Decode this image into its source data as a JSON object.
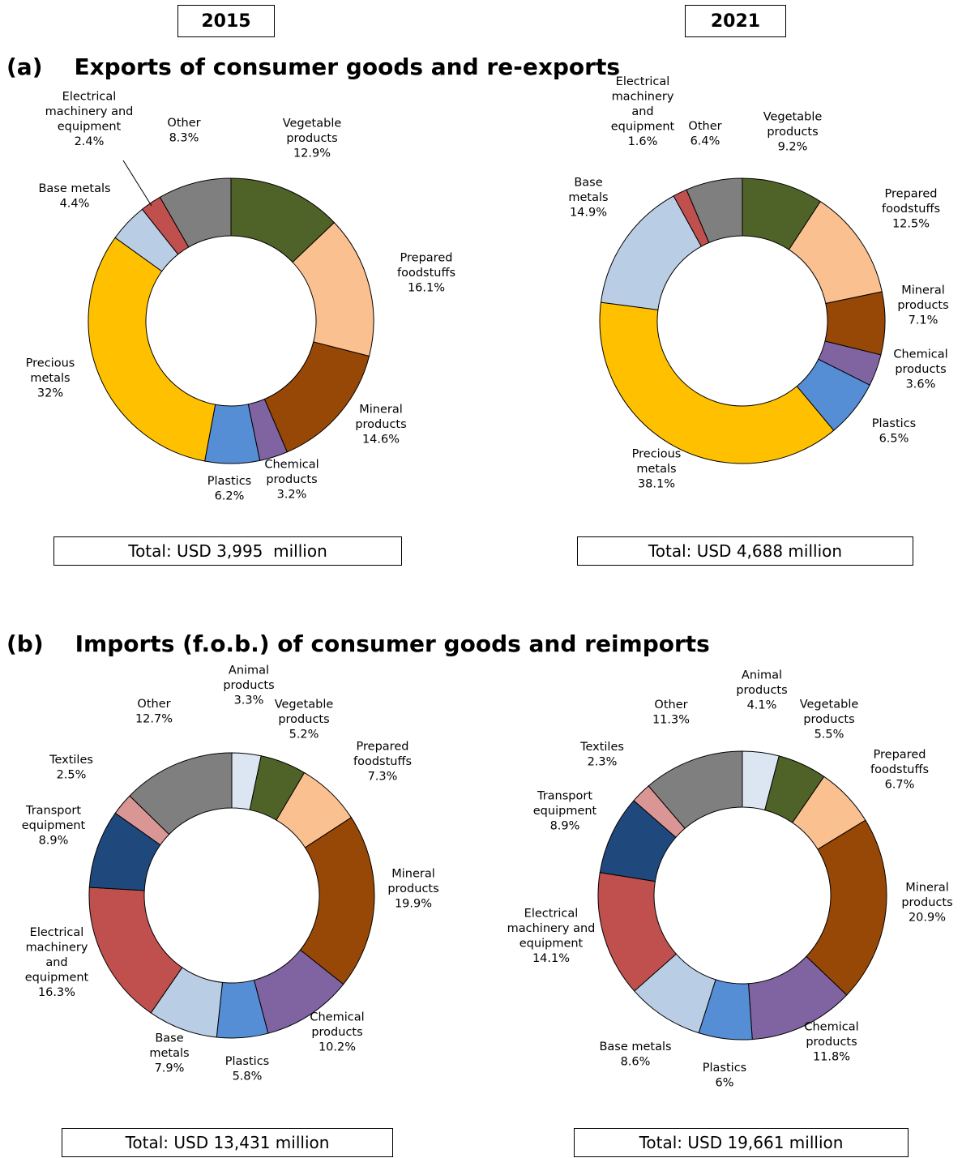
{
  "header": {
    "year_left": "2015",
    "year_right": "2021"
  },
  "sections": {
    "a_title": "(a)    Exports of consumer goods and re-exports",
    "b_title": "(b)    Imports (f.o.b.) of consumer goods and reimports"
  },
  "colors": {
    "vegetable_products": "#4f6228",
    "prepared_foodstuffs": "#fac090",
    "mineral_products": "#974706",
    "chemical_products": "#8064a2",
    "plastics": "#558ed5",
    "precious_metals": "#ffc000",
    "base_metals": "#b9cde5",
    "electrical_machinery": "#c0504d",
    "other": "#7f7f7f",
    "animal_products": "#dce6f2",
    "textiles": "#d99694",
    "transport_equipment": "#1f497d"
  },
  "chart_data": [
    {
      "type": "pie",
      "id": "exports-2015",
      "panel": "(a)",
      "year": "2015",
      "total": "Total: USD 3,995  million",
      "slices": [
        {
          "name": "Vegetable products",
          "value": 12.9,
          "label_lines": [
            "Vegetable",
            "products",
            "12.9%"
          ],
          "color": "#4f6228"
        },
        {
          "name": "Prepared foodstuffs",
          "value": 16.1,
          "label_lines": [
            "Prepared",
            "foodstuffs",
            "16.1%"
          ],
          "color": "#fac090"
        },
        {
          "name": "Mineral products",
          "value": 14.6,
          "label_lines": [
            "Mineral",
            "products",
            "14.6%"
          ],
          "color": "#974706"
        },
        {
          "name": "Chemical products",
          "value": 3.2,
          "label_lines": [
            "Chemical",
            "products",
            "3.2%"
          ],
          "color": "#8064a2"
        },
        {
          "name": "Plastics",
          "value": 6.2,
          "label_lines": [
            "Plastics",
            "6.2%"
          ],
          "color": "#558ed5"
        },
        {
          "name": "Precious metals",
          "value": 32,
          "label_lines": [
            "Precious",
            "metals",
            "32%"
          ],
          "color": "#ffc000"
        },
        {
          "name": "Base metals",
          "value": 4.4,
          "label_lines": [
            "Base metals",
            "4.4%"
          ],
          "color": "#b9cde5"
        },
        {
          "name": "Electrical machinery and equipment",
          "value": 2.4,
          "label_lines": [
            "Electrical",
            "machinery and",
            "equipment",
            "2.4%"
          ],
          "color": "#c0504d"
        },
        {
          "name": "Other",
          "value": 8.3,
          "label_lines": [
            "Other",
            "8.3%"
          ],
          "color": "#7f7f7f"
        }
      ]
    },
    {
      "type": "pie",
      "id": "exports-2021",
      "panel": "(a)",
      "year": "2021",
      "total": "Total: USD 4,688 million",
      "slices": [
        {
          "name": "Vegetable products",
          "value": 9.2,
          "label_lines": [
            "Vegetable",
            "products",
            "9.2%"
          ],
          "color": "#4f6228"
        },
        {
          "name": "Prepared foodstuffs",
          "value": 12.5,
          "label_lines": [
            "Prepared",
            "foodstuffs",
            "12.5%"
          ],
          "color": "#fac090"
        },
        {
          "name": "Mineral products",
          "value": 7.1,
          "label_lines": [
            "Mineral",
            "products",
            "7.1%"
          ],
          "color": "#974706"
        },
        {
          "name": "Chemical products",
          "value": 3.6,
          "label_lines": [
            "Chemical",
            "products",
            "3.6%"
          ],
          "color": "#8064a2"
        },
        {
          "name": "Plastics",
          "value": 6.5,
          "label_lines": [
            "Plastics",
            "6.5%"
          ],
          "color": "#558ed5"
        },
        {
          "name": "Precious metals",
          "value": 38.1,
          "label_lines": [
            "Precious",
            "metals",
            "38.1%"
          ],
          "color": "#ffc000"
        },
        {
          "name": "Base metals",
          "value": 14.9,
          "label_lines": [
            "Base",
            "metals",
            "14.9%"
          ],
          "color": "#b9cde5"
        },
        {
          "name": "Electrical machinery and equipment",
          "value": 1.6,
          "label_lines": [
            "Electrical",
            "machinery",
            "and",
            "equipment",
            "1.6%"
          ],
          "color": "#c0504d"
        },
        {
          "name": "Other",
          "value": 6.4,
          "label_lines": [
            "Other",
            "6.4%"
          ],
          "color": "#7f7f7f"
        }
      ]
    },
    {
      "type": "pie",
      "id": "imports-2015",
      "panel": "(b)",
      "year": "2015",
      "total": "Total: USD 13,431 million",
      "slices": [
        {
          "name": "Animal products",
          "value": 3.3,
          "label_lines": [
            "Animal",
            "products",
            "3.3%"
          ],
          "color": "#dce6f2"
        },
        {
          "name": "Vegetable products",
          "value": 5.2,
          "label_lines": [
            "Vegetable",
            "products",
            "5.2%"
          ],
          "color": "#4f6228"
        },
        {
          "name": "Prepared foodstuffs",
          "value": 7.3,
          "label_lines": [
            "Prepared",
            "foodstuffs",
            "7.3%"
          ],
          "color": "#fac090"
        },
        {
          "name": "Mineral products",
          "value": 19.9,
          "label_lines": [
            "Mineral",
            "products",
            "19.9%"
          ],
          "color": "#974706"
        },
        {
          "name": "Chemical products",
          "value": 10.2,
          "label_lines": [
            "Chemical",
            "products",
            "10.2%"
          ],
          "color": "#8064a2"
        },
        {
          "name": "Plastics",
          "value": 5.8,
          "label_lines": [
            "Plastics",
            "5.8%"
          ],
          "color": "#558ed5"
        },
        {
          "name": "Base metals",
          "value": 7.9,
          "label_lines": [
            "Base",
            "metals",
            "7.9%"
          ],
          "color": "#b9cde5"
        },
        {
          "name": "Electrical machinery and equipment",
          "value": 16.3,
          "label_lines": [
            "Electrical",
            "machinery",
            "and",
            "equipment",
            "16.3%"
          ],
          "color": "#c0504d"
        },
        {
          "name": "Transport equipment",
          "value": 8.9,
          "label_lines": [
            "Transport",
            "equipment",
            "8.9%"
          ],
          "color": "#1f497d"
        },
        {
          "name": "Textiles",
          "value": 2.5,
          "label_lines": [
            "Textiles",
            "2.5%"
          ],
          "color": "#d99694"
        },
        {
          "name": "Other",
          "value": 12.7,
          "label_lines": [
            "Other",
            "12.7%"
          ],
          "color": "#7f7f7f"
        }
      ]
    },
    {
      "type": "pie",
      "id": "imports-2021",
      "panel": "(b)",
      "year": "2021",
      "total": "Total: USD 19,661 million",
      "slices": [
        {
          "name": "Animal products",
          "value": 4.1,
          "label_lines": [
            "Animal",
            "products",
            "4.1%"
          ],
          "color": "#dce6f2"
        },
        {
          "name": "Vegetable products",
          "value": 5.5,
          "label_lines": [
            "Vegetable",
            "products",
            "5.5%"
          ],
          "color": "#4f6228"
        },
        {
          "name": "Prepared foodstuffs",
          "value": 6.7,
          "label_lines": [
            "Prepared",
            "foodstuffs",
            "6.7%"
          ],
          "color": "#fac090"
        },
        {
          "name": "Mineral products",
          "value": 20.9,
          "label_lines": [
            "Mineral",
            "products",
            "20.9%"
          ],
          "color": "#974706"
        },
        {
          "name": "Chemical products",
          "value": 11.8,
          "label_lines": [
            "Chemical",
            "products",
            "11.8%"
          ],
          "color": "#8064a2"
        },
        {
          "name": "Plastics",
          "value": 6,
          "label_lines": [
            "Plastics",
            "6%"
          ],
          "color": "#558ed5"
        },
        {
          "name": "Base metals",
          "value": 8.6,
          "label_lines": [
            "Base metals",
            "8.6%"
          ],
          "color": "#b9cde5"
        },
        {
          "name": "Electrical machinery and equipment",
          "value": 14.1,
          "label_lines": [
            "Electrical",
            "machinery and",
            "equipment",
            "14.1%"
          ],
          "color": "#c0504d"
        },
        {
          "name": "Transport equipment",
          "value": 8.9,
          "label_lines": [
            "Transport",
            "equipment",
            "8.9%"
          ],
          "color": "#1f497d"
        },
        {
          "name": "Textiles",
          "value": 2.3,
          "label_lines": [
            "Textiles",
            "2.3%"
          ],
          "color": "#d99694"
        },
        {
          "name": "Other",
          "value": 11.3,
          "label_lines": [
            "Other",
            "11.3%"
          ],
          "color": "#7f7f7f"
        }
      ]
    }
  ]
}
